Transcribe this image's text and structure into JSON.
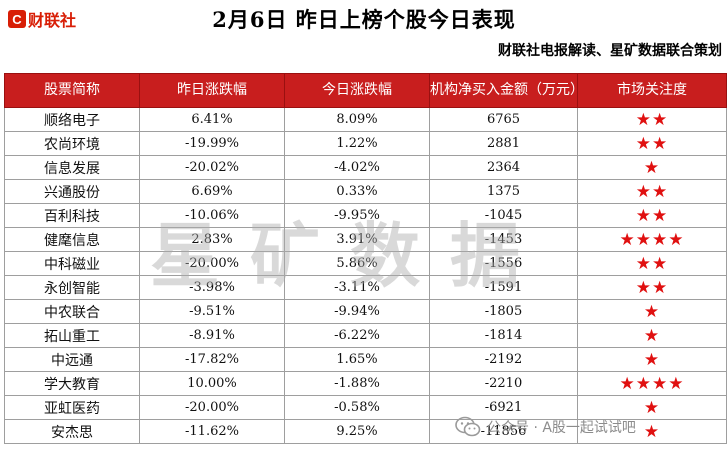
{
  "logo": {
    "glyph": "C",
    "text": "财联社"
  },
  "header": {
    "title": "2月6日  昨日上榜个股今日表现",
    "subtitle": "财联社电报解读、星矿数据联合策划"
  },
  "table": {
    "columns": [
      "股票简称",
      "昨日涨跌幅",
      "今日涨跌幅",
      "机构净买入金额（万元）",
      "市场关注度"
    ],
    "rows": [
      {
        "name": "顺络电子",
        "yesterday": "6.41%",
        "today": "8.09%",
        "net_buy": "6765",
        "stars": "★★"
      },
      {
        "name": "农尚环境",
        "yesterday": "-19.99%",
        "today": "1.22%",
        "net_buy": "2881",
        "stars": "★★"
      },
      {
        "name": "信息发展",
        "yesterday": "-20.02%",
        "today": "-4.02%",
        "net_buy": "2364",
        "stars": "★"
      },
      {
        "name": "兴通股份",
        "yesterday": "6.69%",
        "today": "0.33%",
        "net_buy": "1375",
        "stars": "★★"
      },
      {
        "name": "百利科技",
        "yesterday": "-10.06%",
        "today": "-9.95%",
        "net_buy": "-1045",
        "stars": "★★"
      },
      {
        "name": "健麾信息",
        "yesterday": "2.83%",
        "today": "3.91%",
        "net_buy": "-1453",
        "stars": "★★★★"
      },
      {
        "name": "中科磁业",
        "yesterday": "-20.00%",
        "today": "5.86%",
        "net_buy": "-1556",
        "stars": "★★"
      },
      {
        "name": "永创智能",
        "yesterday": "-3.98%",
        "today": "-3.11%",
        "net_buy": "-1591",
        "stars": "★★"
      },
      {
        "name": "中农联合",
        "yesterday": "-9.51%",
        "today": "-9.94%",
        "net_buy": "-1805",
        "stars": "★"
      },
      {
        "name": "拓山重工",
        "yesterday": "-8.91%",
        "today": "-6.22%",
        "net_buy": "-1814",
        "stars": "★"
      },
      {
        "name": "中远通",
        "yesterday": "-17.82%",
        "today": "1.65%",
        "net_buy": "-2192",
        "stars": "★"
      },
      {
        "name": "学大教育",
        "yesterday": "10.00%",
        "today": "-1.88%",
        "net_buy": "-2210",
        "stars": "★★★★"
      },
      {
        "name": "亚虹医药",
        "yesterday": "-20.00%",
        "today": "-0.58%",
        "net_buy": "-6921",
        "stars": "★"
      },
      {
        "name": "安杰思",
        "yesterday": "-11.62%",
        "today": "9.25%",
        "net_buy": "-11856",
        "stars": "★"
      }
    ]
  },
  "watermark": "星矿数据",
  "footer": {
    "text": "公众号 · A股一起试试吧"
  },
  "colors": {
    "header_bg": "#c81e1e",
    "star": "#e01010",
    "brand": "#d81e06"
  }
}
